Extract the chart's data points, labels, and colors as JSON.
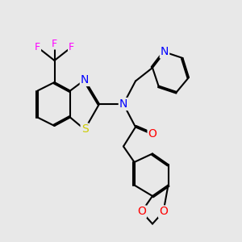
{
  "background_color": "#e8e8e8",
  "atom_colors": {
    "N": "#0000ff",
    "O": "#ff0000",
    "S": "#cccc00",
    "F": "#ff00ff",
    "C": "#000000"
  },
  "bond_color": "#000000",
  "bond_width": 1.5,
  "dbo": 0.055,
  "font_size_atom": 10,
  "font_size_F": 9
}
